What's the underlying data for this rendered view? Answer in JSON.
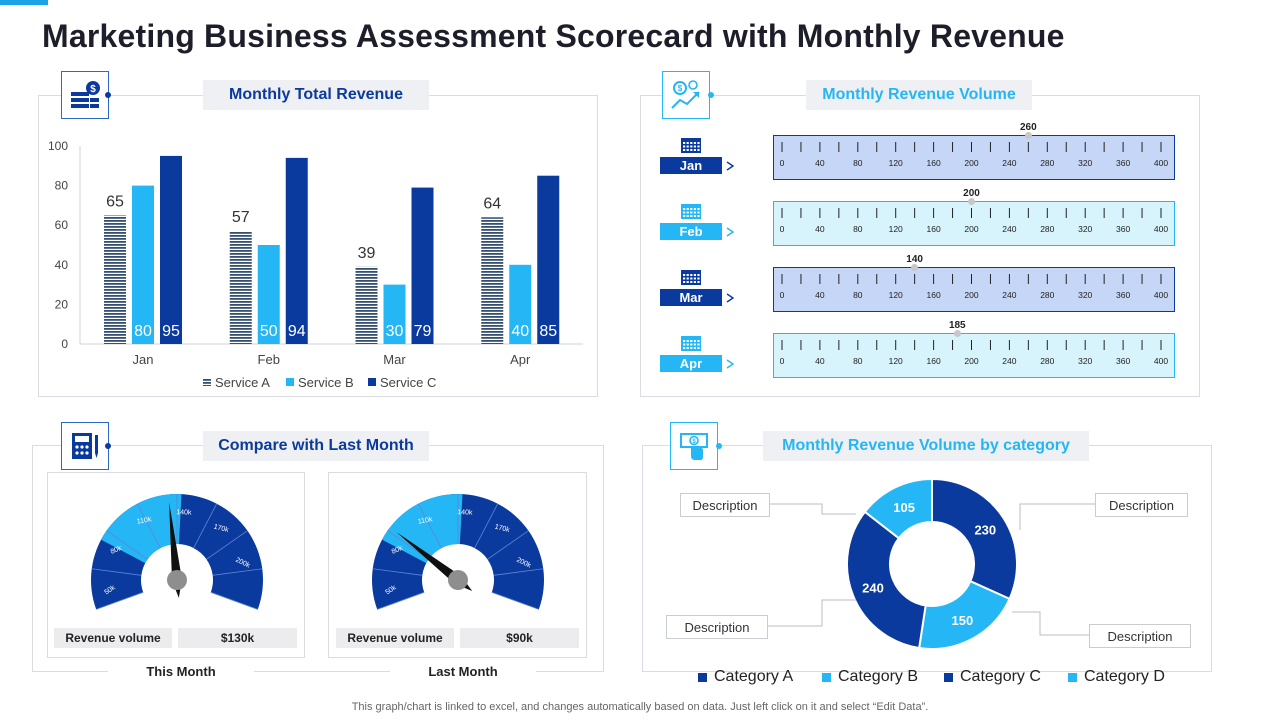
{
  "title": "Marketing Business Assessment Scorecard with Monthly Revenue",
  "footer": "This graph/chart is linked to excel,  and changes automatically based on data. Just left click on it and select “Edit Data”.",
  "colors": {
    "navy": "#0b3a9e",
    "lightblue": "#25b6f5",
    "cyan_panel": "#d7f3fb",
    "blue_panel": "#c6d6f6"
  },
  "panels": {
    "revenue": {
      "title": "Monthly Total Revenue",
      "icon": "money-stack-icon"
    },
    "volume": {
      "title": "Monthly Revenue Volume",
      "icon": "revenue-growth-icon"
    },
    "compare": {
      "title": "Compare with Last Month",
      "icon": "calculator-icon"
    },
    "category": {
      "title": "Monthly Revenue Volume by category",
      "icon": "cash-hand-icon"
    }
  },
  "chart_data": [
    {
      "type": "bar",
      "title": "Monthly Total Revenue",
      "categories": [
        "Jan",
        "Feb",
        "Mar",
        "Apr"
      ],
      "series": [
        {
          "name": "Service A",
          "values": [
            65,
            57,
            39,
            64
          ]
        },
        {
          "name": "Service B",
          "values": [
            80,
            50,
            30,
            40
          ]
        },
        {
          "name": "Service C",
          "values": [
            95,
            94,
            79,
            85
          ]
        }
      ],
      "ylim": [
        0,
        100
      ],
      "yticks": [
        "0",
        "20",
        "40",
        "60",
        "80",
        "100"
      ]
    },
    {
      "type": "bar",
      "title": "Monthly Revenue Volume",
      "scale_ticks": [
        "0",
        "40",
        "80",
        "120",
        "160",
        "200",
        "240",
        "280",
        "320",
        "360",
        "400"
      ],
      "scale_max": 400,
      "rows": [
        {
          "month": "Jan",
          "value": 260,
          "value_label": "260"
        },
        {
          "month": "Feb",
          "value": 200,
          "value_label": "200"
        },
        {
          "month": "Mar",
          "value": 140,
          "value_label": "140"
        },
        {
          "month": "Apr",
          "value": 185,
          "value_label": "185"
        }
      ]
    },
    {
      "type": "gauge",
      "title": "Compare with Last Month",
      "tick_labels": [
        "50k",
        "80k",
        "110k",
        "140k",
        "170k",
        "200k"
      ],
      "min": 40,
      "max": 230,
      "gauges": [
        {
          "caption": "This Month",
          "label": "Revenue volume",
          "value_text": "$130k",
          "value": 130
        },
        {
          "caption": "Last Month",
          "label": "Revenue volume",
          "value_text": "$90k",
          "value": 90
        }
      ]
    },
    {
      "type": "pie",
      "title": "Monthly Revenue Volume by category",
      "slices": [
        {
          "name": "Category A",
          "value": 230,
          "label": "230"
        },
        {
          "name": "Category B",
          "value": 150,
          "label": "150"
        },
        {
          "name": "Category C",
          "value": 240,
          "label": "240"
        },
        {
          "name": "Category D",
          "value": 105,
          "label": "105"
        }
      ],
      "descriptions": [
        "Description",
        "Description",
        "Description",
        "Description"
      ],
      "legend": [
        "Category A",
        "Category B",
        "Category C",
        "Category D"
      ]
    }
  ]
}
